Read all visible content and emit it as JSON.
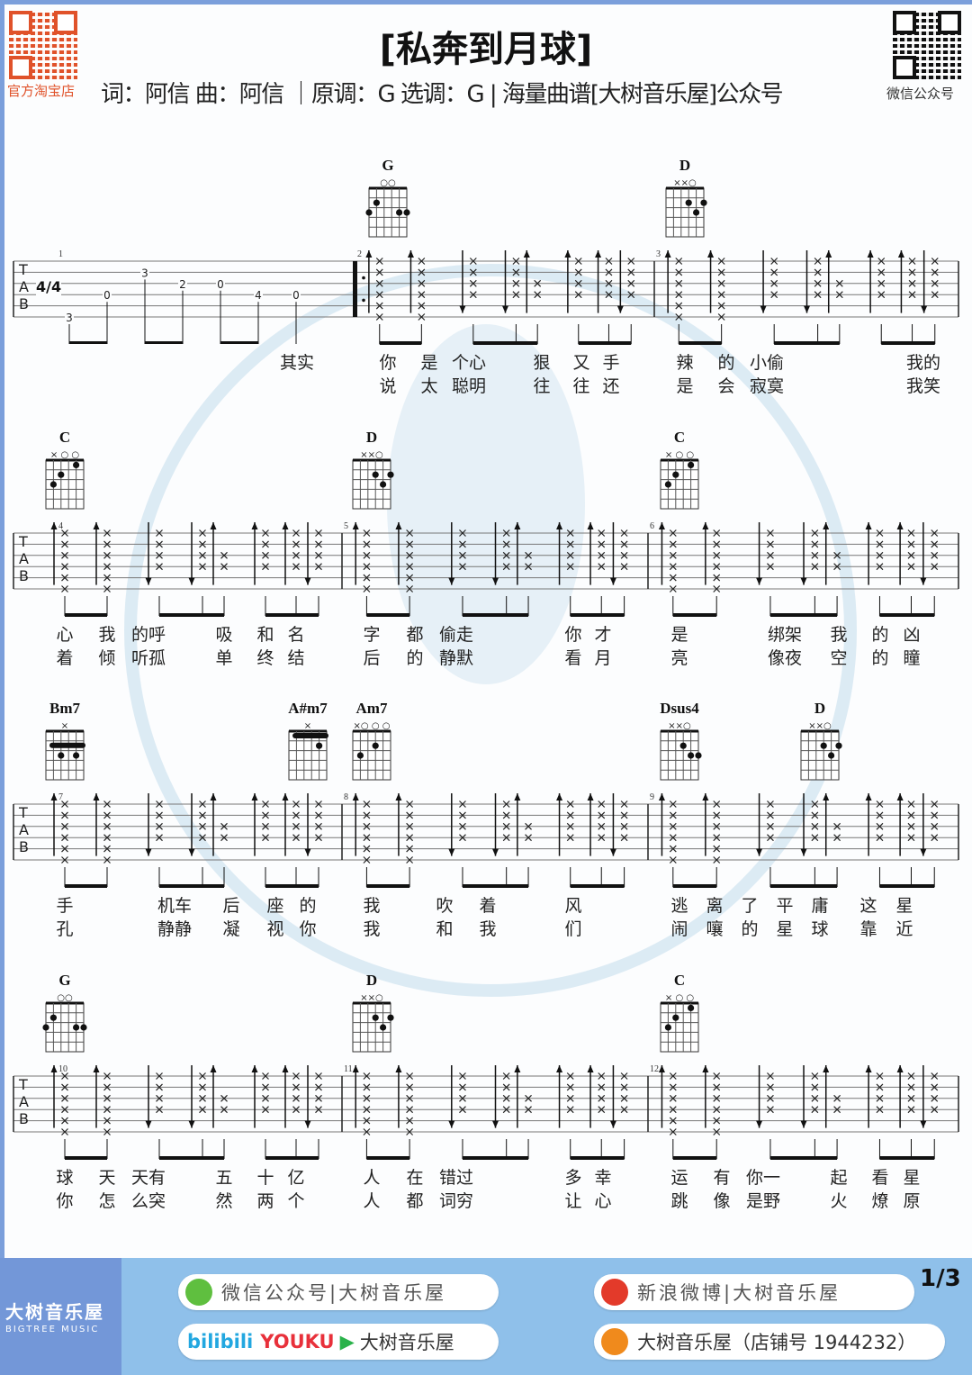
{
  "header": {
    "title": "[私奔到月球]",
    "subtitle": "词：阿信 曲：阿信 ｜原调：G  选调：G | 海量曲谱[大树音乐屋]公众号",
    "left_qr_caption": "官方淘宝店",
    "right_qr_caption": "微信公众号"
  },
  "watermark": {
    "cn": "大树音乐屋",
    "en": "BIGTREEMUSIC"
  },
  "systems": [
    {
      "chords": [
        {
          "name": "G",
          "top": "○○"
        },
        {
          "name": "D",
          "top": "××○"
        }
      ],
      "measures": [
        "1",
        "2",
        "3"
      ],
      "lyrics1": [
        "其实",
        "你",
        "是",
        "个心",
        "狠",
        "又",
        "手",
        "辣",
        "的",
        "小偷",
        "我的"
      ],
      "lyrics2": [
        "",
        "说",
        "太",
        "聪明",
        "往",
        "往",
        "还",
        "是",
        "会",
        "寂寞",
        "我笑"
      ]
    },
    {
      "chords": [
        {
          "name": "C",
          "top": "×  ○ ○"
        },
        {
          "name": "D",
          "top": "××○"
        },
        {
          "name": "C",
          "top": "×  ○ ○"
        }
      ],
      "measures": [
        "4",
        "5",
        "6"
      ],
      "lyrics1": [
        "心",
        "我",
        "的呼",
        "吸",
        "和",
        "名",
        "字",
        "都",
        "偷走",
        "你",
        "才",
        "是",
        "绑架",
        "我",
        "的",
        "凶"
      ],
      "lyrics2": [
        "着",
        "倾",
        "听孤",
        "单",
        "终",
        "结",
        "后",
        "的",
        "静默",
        "看",
        "月",
        "亮",
        "像夜",
        "空",
        "的",
        "瞳"
      ]
    },
    {
      "chords": [
        {
          "name": "Bm7",
          "top": "×"
        },
        {
          "name": "A#m7",
          "top": "×"
        },
        {
          "name": "Am7",
          "top": "×○ ○ ○"
        },
        {
          "name": "Dsus4",
          "top": "××○"
        },
        {
          "name": "D",
          "top": "××○"
        }
      ],
      "measures": [
        "7",
        "8",
        "9"
      ],
      "lyrics1": [
        "手",
        "机车",
        "后",
        "座",
        "的",
        "我",
        "吹",
        "着",
        "风",
        "逃",
        "离",
        "了",
        "平",
        "庸",
        "这",
        "星"
      ],
      "lyrics2": [
        "孔",
        "静静",
        "凝",
        "视",
        "你",
        "我",
        "和",
        "我",
        "们",
        "闹",
        "嚷",
        "的",
        "星",
        "球",
        "靠",
        "近"
      ]
    },
    {
      "chords": [
        {
          "name": "G",
          "top": "○○"
        },
        {
          "name": "D",
          "top": "××○"
        },
        {
          "name": "C",
          "top": "×  ○ ○"
        }
      ],
      "measures": [
        "10",
        "11",
        "12"
      ],
      "lyrics1": [
        "球",
        "天",
        "天有",
        "五",
        "十",
        "亿",
        "人",
        "在",
        "错过",
        "多",
        "幸",
        "运",
        "有",
        "你一",
        "起",
        "看",
        "星"
      ],
      "lyrics2": [
        "你",
        "怎",
        "么突",
        "然",
        "两",
        "个",
        "人",
        "都",
        "词穷",
        "让",
        "心",
        "跳",
        "像",
        "是野",
        "火",
        "燎",
        "原"
      ]
    }
  ],
  "intro_tab": {
    "tab_label": "TAB",
    "time_signature": "4/4",
    "frets": [
      "3",
      "0",
      "3",
      "2",
      "0",
      "4",
      "0"
    ]
  },
  "footer": {
    "brand_cn": "大树音乐屋",
    "brand_en": "BIGTREE MUSIC",
    "wechat": "微信公众号|大树音乐屋",
    "weibo": "新浪微博|大树音乐屋",
    "video_bilibili": "bilibili",
    "video_youku": "YOUKU",
    "video_name": "大树音乐屋",
    "taobao": "大树音乐屋（店铺号 1944232）",
    "page": "1/3"
  },
  "colors": {
    "frame": "#7b9fdb",
    "footer": "#8fc0ea",
    "brand": "#7397d8",
    "taobao_qr": "#e0522a",
    "watermark": "#cfe3ef"
  }
}
